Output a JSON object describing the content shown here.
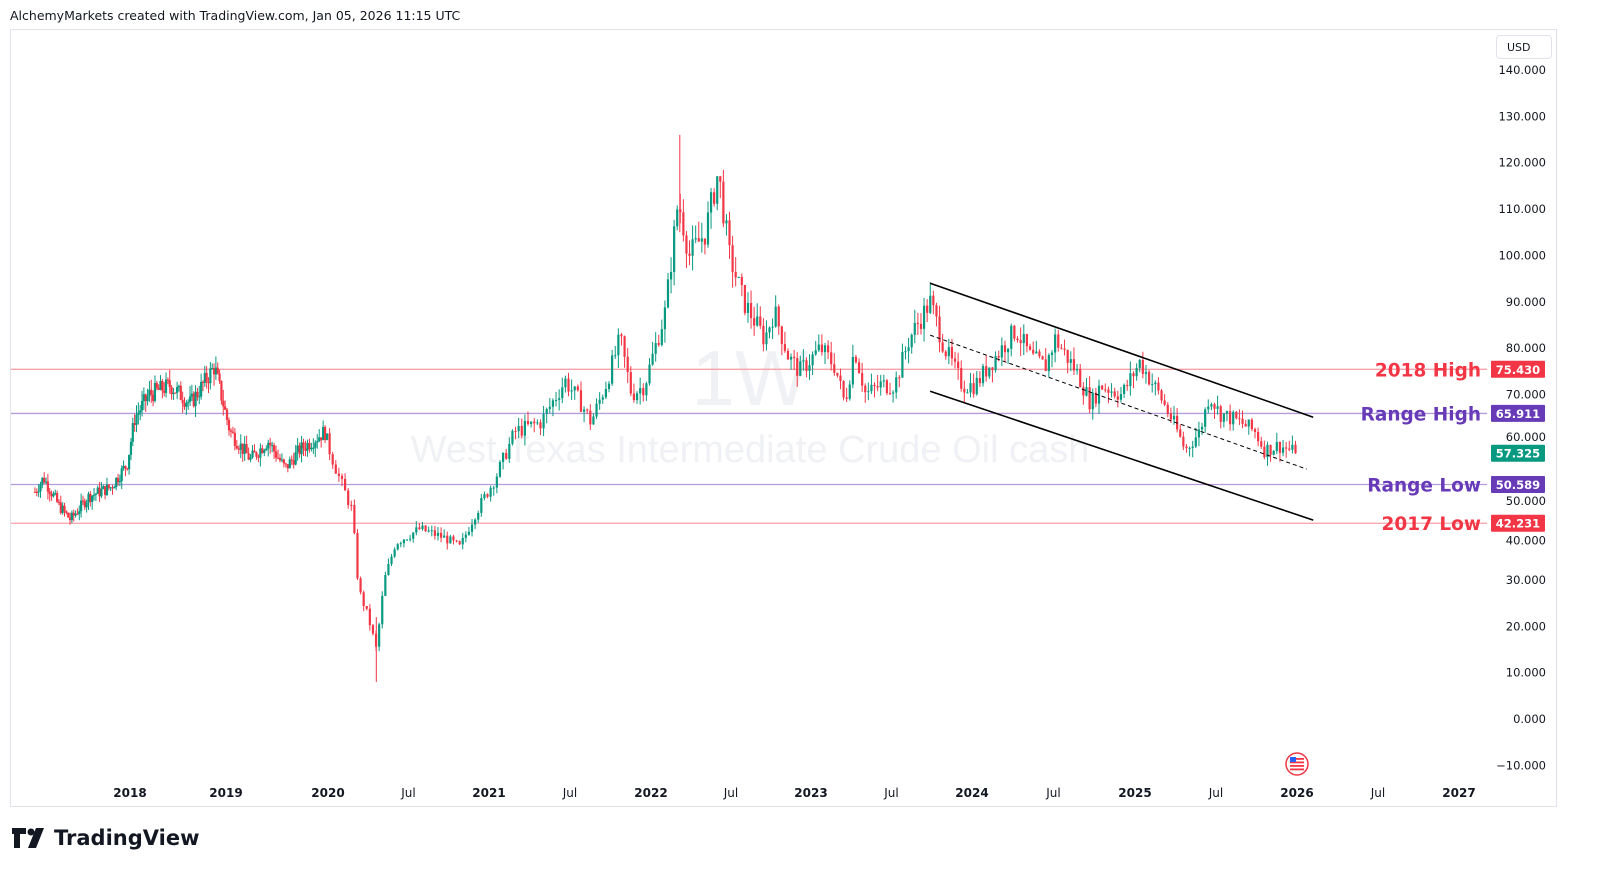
{
  "header": {
    "attribution": "AlchemyMarkets created with TradingView.com, Jan 05, 2026 11:15 UTC"
  },
  "currency_button": "USD",
  "logo": {
    "text": "TradingView"
  },
  "colors": {
    "up": "#089981",
    "down": "#f23645",
    "red_level": "#f23645",
    "purple_level": "#673ab7",
    "red_line": "#f7a1a8",
    "purple_line": "#b39ddb",
    "channel": "#000000"
  },
  "chart_data": {
    "type": "candlestick",
    "symbol_watermark": "1W",
    "title_watermark": "West Texas Intermediate Crude Oil cash",
    "interval": "1W",
    "ylim": [
      -14,
      146
    ],
    "y_ticks": [
      -10,
      0,
      10,
      20,
      30,
      40,
      50,
      60,
      70,
      80,
      90,
      100,
      110,
      120,
      130,
      140
    ],
    "y_tick_labels": [
      "−10.000",
      "0.000",
      "10.000",
      "20.000",
      "30.000",
      "40.000",
      "50.000",
      "60.000",
      "70.000",
      "80.000",
      "90.000",
      "100.000",
      "110.000",
      "120.000",
      "130.000",
      "140.000"
    ],
    "x_ticks": [
      {
        "t": 2018,
        "label": "2018"
      },
      {
        "t": 2019,
        "label": "2019"
      },
      {
        "t": 2020,
        "label": "2020"
      },
      {
        "t": 2020.5,
        "label": "Jul"
      },
      {
        "t": 2021,
        "label": "2021"
      },
      {
        "t": 2021.5,
        "label": "Jul"
      },
      {
        "t": 2022,
        "label": "2022"
      },
      {
        "t": 2022.5,
        "label": "Jul"
      },
      {
        "t": 2023,
        "label": "2023"
      },
      {
        "t": 2023.5,
        "label": "Jul"
      },
      {
        "t": 2024,
        "label": "2024"
      },
      {
        "t": 2024.5,
        "label": "Jul"
      },
      {
        "t": 2025,
        "label": "2025"
      },
      {
        "t": 2025.5,
        "label": "Jul"
      },
      {
        "t": 2026,
        "label": "2026"
      },
      {
        "t": 2026.5,
        "label": "Jul"
      },
      {
        "t": 2027,
        "label": "2027"
      }
    ],
    "price_path": [
      [
        2017.01,
        49
      ],
      [
        2017.1,
        52
      ],
      [
        2017.26,
        46
      ],
      [
        2017.38,
        43
      ],
      [
        2017.57,
        48
      ],
      [
        2017.8,
        50
      ],
      [
        2017.97,
        55
      ],
      [
        2018.05,
        65
      ],
      [
        2018.2,
        70
      ],
      [
        2018.42,
        72
      ],
      [
        2018.63,
        68
      ],
      [
        2018.88,
        76
      ],
      [
        2019.04,
        62
      ],
      [
        2019.24,
        56
      ],
      [
        2019.41,
        60
      ],
      [
        2019.58,
        54
      ],
      [
        2019.72,
        58
      ],
      [
        2019.97,
        62
      ],
      [
        2020.07,
        52
      ],
      [
        2020.15,
        45
      ],
      [
        2020.19,
        28
      ],
      [
        2020.25,
        22
      ],
      [
        2020.3,
        15
      ],
      [
        2020.35,
        30
      ],
      [
        2020.42,
        38
      ],
      [
        2020.57,
        41
      ],
      [
        2020.73,
        39
      ],
      [
        2020.82,
        37
      ],
      [
        2020.91,
        44
      ],
      [
        2021.04,
        52
      ],
      [
        2021.16,
        62
      ],
      [
        2021.32,
        64
      ],
      [
        2021.47,
        73
      ],
      [
        2021.57,
        68
      ],
      [
        2021.63,
        64
      ],
      [
        2021.72,
        72
      ],
      [
        2021.81,
        82
      ],
      [
        2021.88,
        70
      ],
      [
        2021.96,
        72
      ],
      [
        2022.09,
        88
      ],
      [
        2022.17,
        112
      ],
      [
        2022.24,
        100
      ],
      [
        2022.34,
        105
      ],
      [
        2022.42,
        118
      ],
      [
        2022.49,
        100
      ],
      [
        2022.58,
        90
      ],
      [
        2022.71,
        82
      ],
      [
        2022.77,
        88
      ],
      [
        2022.86,
        78
      ],
      [
        2022.93,
        75
      ],
      [
        2023.06,
        80
      ],
      [
        2023.15,
        76
      ],
      [
        2023.21,
        68
      ],
      [
        2023.27,
        80
      ],
      [
        2023.34,
        70
      ],
      [
        2023.43,
        72
      ],
      [
        2023.52,
        72
      ],
      [
        2023.61,
        82
      ],
      [
        2023.74,
        90
      ],
      [
        2023.83,
        80
      ],
      [
        2023.94,
        72
      ],
      [
        2024.02,
        72
      ],
      [
        2024.14,
        78
      ],
      [
        2024.27,
        84
      ],
      [
        2024.36,
        78
      ],
      [
        2024.45,
        76
      ],
      [
        2024.51,
        82
      ],
      [
        2024.64,
        75
      ],
      [
        2024.73,
        68
      ],
      [
        2024.79,
        72
      ],
      [
        2024.92,
        70
      ],
      [
        2025.03,
        77
      ],
      [
        2025.15,
        70
      ],
      [
        2025.25,
        63
      ],
      [
        2025.31,
        58
      ],
      [
        2025.4,
        62
      ],
      [
        2025.46,
        70
      ],
      [
        2025.52,
        66
      ],
      [
        2025.65,
        64
      ],
      [
        2025.74,
        62
      ],
      [
        2025.8,
        58
      ],
      [
        2025.89,
        59
      ],
      [
        2026.0,
        57.325
      ]
    ],
    "last_price": {
      "value": 57.325,
      "label": "57.325"
    },
    "levels": [
      {
        "name": "2018 High",
        "value": 75.43,
        "label": "75.430",
        "kind": "red"
      },
      {
        "name": "Range High",
        "value": 65.911,
        "label": "65.911",
        "kind": "purple"
      },
      {
        "name": "Range Low",
        "value": 50.589,
        "label": "50.589",
        "kind": "purple"
      },
      {
        "name": "2017 Low",
        "value": 42.231,
        "label": "42.231",
        "kind": "red"
      }
    ],
    "channel": {
      "upper": [
        [
          2023.74,
          94.0
        ],
        [
          2026.1,
          65.1
        ]
      ],
      "lower": [
        [
          2023.74,
          70.7
        ],
        [
          2026.1,
          42.9
        ]
      ],
      "middle_dashed": [
        [
          2023.74,
          82.8
        ],
        [
          2026.06,
          53.9
        ]
      ]
    }
  }
}
